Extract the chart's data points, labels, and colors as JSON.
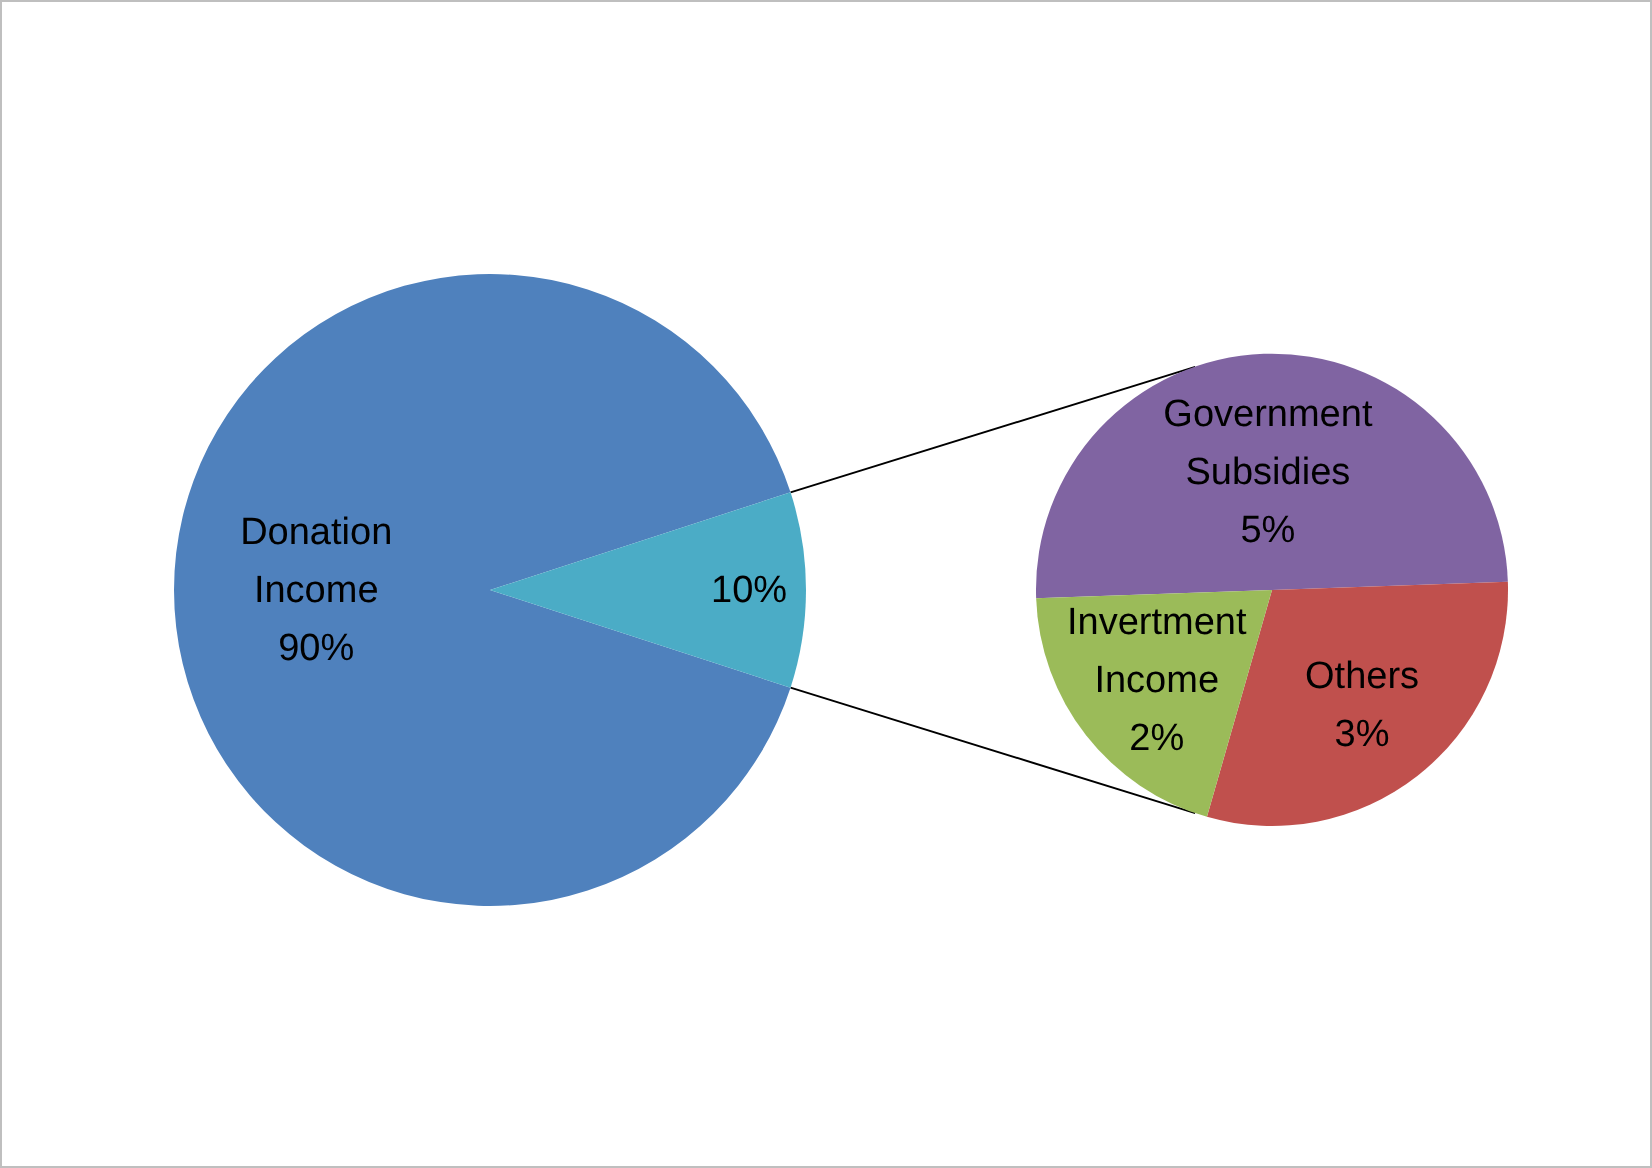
{
  "chart_data": [
    {
      "type": "pie",
      "categories": [
        "Donation Income",
        null
      ],
      "values": [
        90,
        10
      ],
      "colors": [
        "#4f81bd",
        "#4bacc6"
      ],
      "value_labels": [
        "90%",
        "10%"
      ]
    },
    {
      "type": "pie",
      "categories": [
        "Government Subsidies",
        "Others",
        "Invertment Income"
      ],
      "values": [
        5,
        3,
        2
      ],
      "colors": [
        "#8064a2",
        "#c0504d",
        "#9bbb59"
      ],
      "value_labels": [
        "5%",
        "3%",
        "2%"
      ]
    }
  ]
}
